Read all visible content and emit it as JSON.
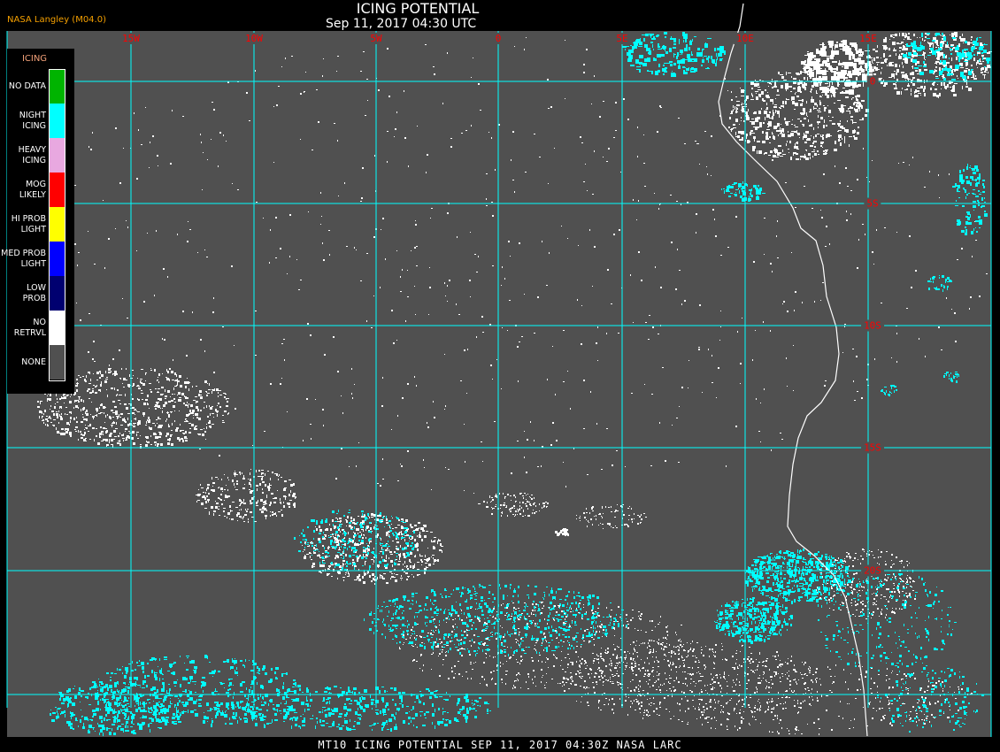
{
  "header": {
    "title": "ICING POTENTIAL",
    "subtitle": "Sep 11, 2017 04:30 UTC",
    "brand": "NASA Langley (M04.0)"
  },
  "footer": {
    "caption": "MT10  ICING POTENTIAL   SEP 11, 2017 04:30Z   NASA LARC"
  },
  "map": {
    "background_color": "#505050",
    "grid_color": "#00ffff",
    "label_color": "#ff0000",
    "longitude_labels": [
      "15W",
      "10W",
      "5W",
      "0",
      "5E",
      "10E",
      "15E"
    ],
    "latitude_labels": [
      "0",
      "5S",
      "10S",
      "15S",
      "20S"
    ]
  },
  "legend": {
    "title": "ICING",
    "items": [
      {
        "label": "NO DATA",
        "color": "#00b400"
      },
      {
        "label": "NIGHT\nICING",
        "color": "#00ffff"
      },
      {
        "label": "HEAVY\nICING",
        "color": "#e8a8e0"
      },
      {
        "label": "MOG\nLIKELY",
        "color": "#ff0000"
      },
      {
        "label": "HI PROB\nLIGHT",
        "color": "#ffff00"
      },
      {
        "label": "MED PROB\nLIGHT",
        "color": "#0000ff"
      },
      {
        "label": "LOW\nPROB",
        "color": "#000070"
      },
      {
        "label": "NO\nRETRVL",
        "color": "#ffffff"
      },
      {
        "label": "NONE",
        "color": "#505050"
      }
    ]
  }
}
